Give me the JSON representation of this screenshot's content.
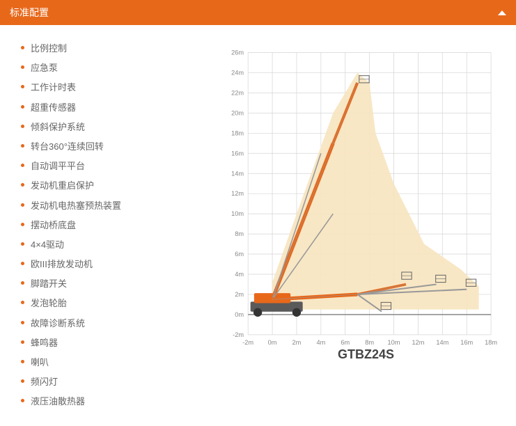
{
  "header": {
    "title": "标准配置"
  },
  "features": {
    "items": [
      "比例控制",
      "应急泵",
      "工作计时表",
      "超重传感器",
      "倾斜保护系统",
      "转台360°连续回转",
      "自动调平平台",
      "发动机重启保护",
      "发动机电热塞预热装置",
      "摆动桥底盘",
      "4×4驱动",
      "欧III排放发动机",
      "脚踏开关",
      "发泡轮胎",
      "故障诊断系统",
      "蜂鸣器",
      "喇叭",
      "频闪灯",
      "液压油散热器"
    ]
  },
  "chart": {
    "model": "GTBZ24S",
    "x": {
      "min": -2,
      "max": 18,
      "step": 2,
      "unit": "m"
    },
    "y": {
      "min": -2,
      "max": 26,
      "step": 2,
      "unit": "m"
    },
    "colors": {
      "grid": "#d5d5d5",
      "axis_text": "#888888",
      "envelope_fill": "#f7e4bf",
      "boom_fill": "#e8681a",
      "boom_dark": "#5a5a5a",
      "outline": "#999999"
    },
    "envelope": [
      [
        0,
        0
      ],
      [
        0,
        3.2
      ],
      [
        2,
        10
      ],
      [
        5,
        20
      ],
      [
        7,
        24
      ],
      [
        8,
        23
      ],
      [
        8.5,
        18
      ],
      [
        10,
        13
      ],
      [
        12.5,
        7
      ],
      [
        15.5,
        4.5
      ],
      [
        17,
        2.8
      ],
      [
        17,
        0.5
      ],
      [
        0,
        0.5
      ]
    ]
  }
}
